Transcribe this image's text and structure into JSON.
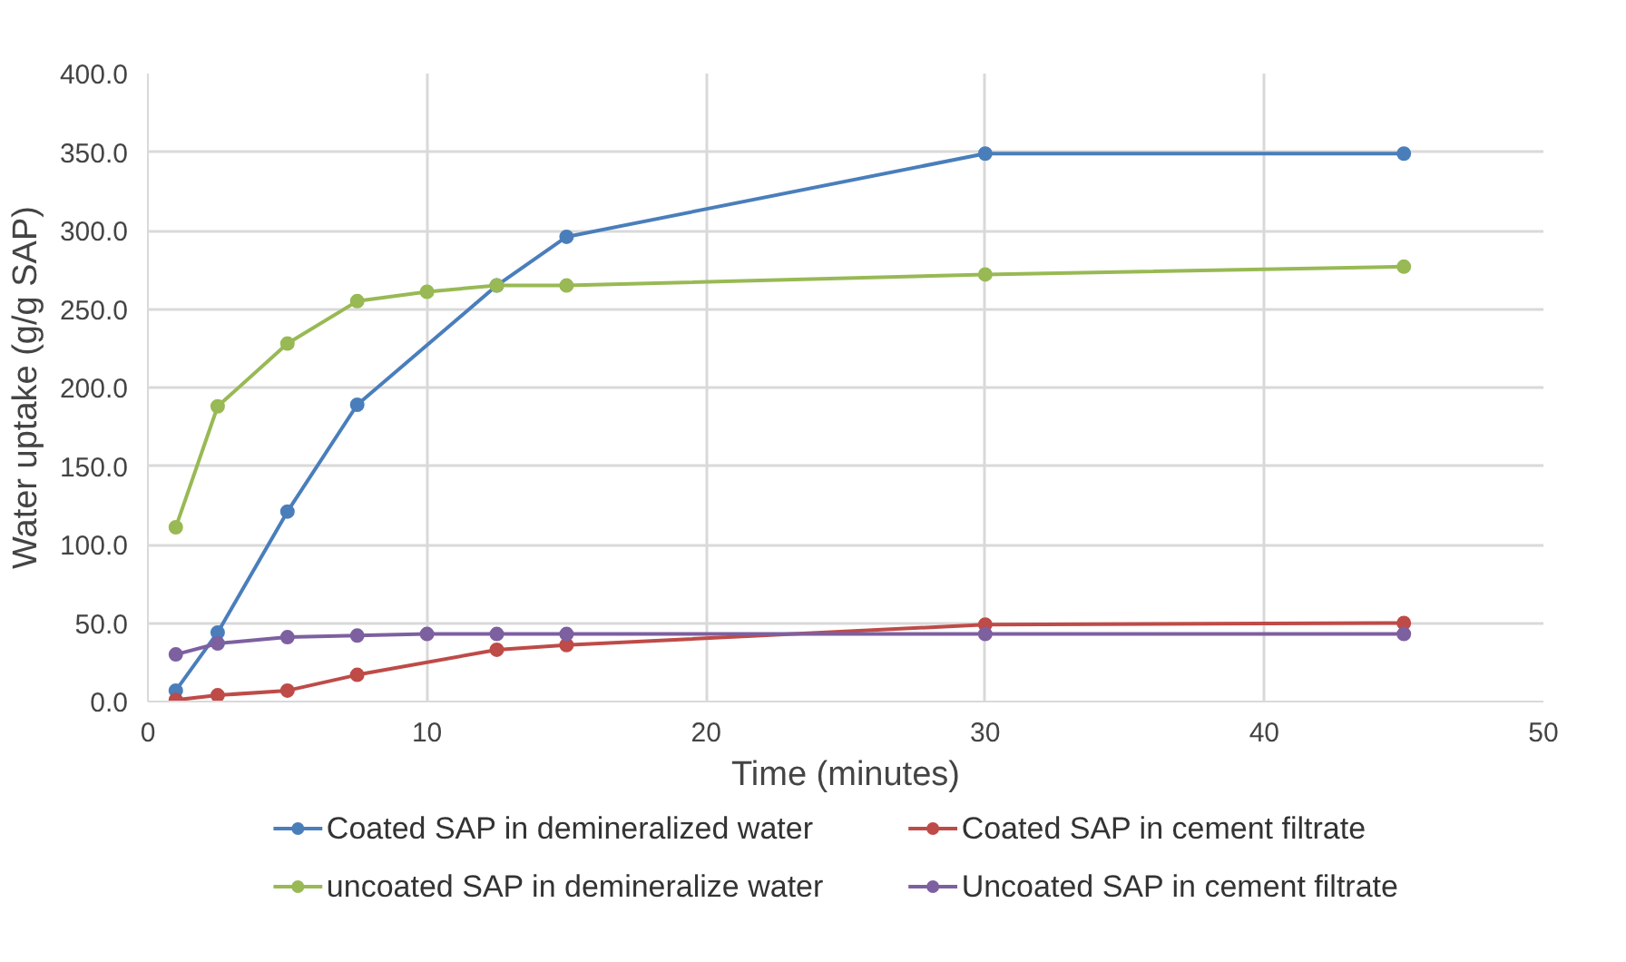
{
  "chart_data": {
    "type": "line",
    "xlabel": "Time (minutes)",
    "ylabel": "Water uptake (g/g SAP)",
    "x": [
      1,
      2.5,
      5,
      7.5,
      10,
      12.5,
      15,
      30,
      45
    ],
    "series": [
      {
        "name": "Coated SAP in demineralized water",
        "color": "#4a7ebb",
        "x": [
          1,
          2.5,
          5,
          7.5,
          12.5,
          15,
          30,
          45
        ],
        "values": [
          7,
          44,
          121,
          189,
          265,
          296,
          349,
          349
        ]
      },
      {
        "name": "Coated SAP in cement filtrate",
        "color": "#be4b48",
        "x": [
          1,
          2.5,
          5,
          7.5,
          12.5,
          15,
          30,
          45
        ],
        "values": [
          1,
          4,
          7,
          17,
          33,
          36,
          49,
          50
        ]
      },
      {
        "name": "uncoated SAP in demineralize water",
        "color": "#98b954",
        "values": [
          111,
          188,
          228,
          255,
          261,
          265,
          265,
          272,
          277
        ]
      },
      {
        "name": "Uncoated SAP in cement filtrate",
        "color": "#7d60a0",
        "values": [
          30,
          37,
          41,
          42,
          43,
          43,
          43,
          43,
          43
        ]
      }
    ],
    "xlim": [
      0,
      50
    ],
    "xticks": [
      0,
      10,
      20,
      30,
      40,
      50
    ],
    "ylim": [
      0,
      400
    ],
    "yticks": [
      {
        "value": 0,
        "label": "0.0"
      },
      {
        "value": 50,
        "label": "50.0"
      },
      {
        "value": 100,
        "label": "100.0"
      },
      {
        "value": 150,
        "label": "150.0"
      },
      {
        "value": 200,
        "label": "200.0"
      },
      {
        "value": 250,
        "label": "250.0"
      },
      {
        "value": 300,
        "label": "300.0"
      },
      {
        "value": 350,
        "label": "350.0"
      },
      {
        "value": 400,
        "label": "400.0"
      }
    ],
    "grid": true,
    "legend": "bottom",
    "marker": "circle",
    "line_style": "solid"
  }
}
